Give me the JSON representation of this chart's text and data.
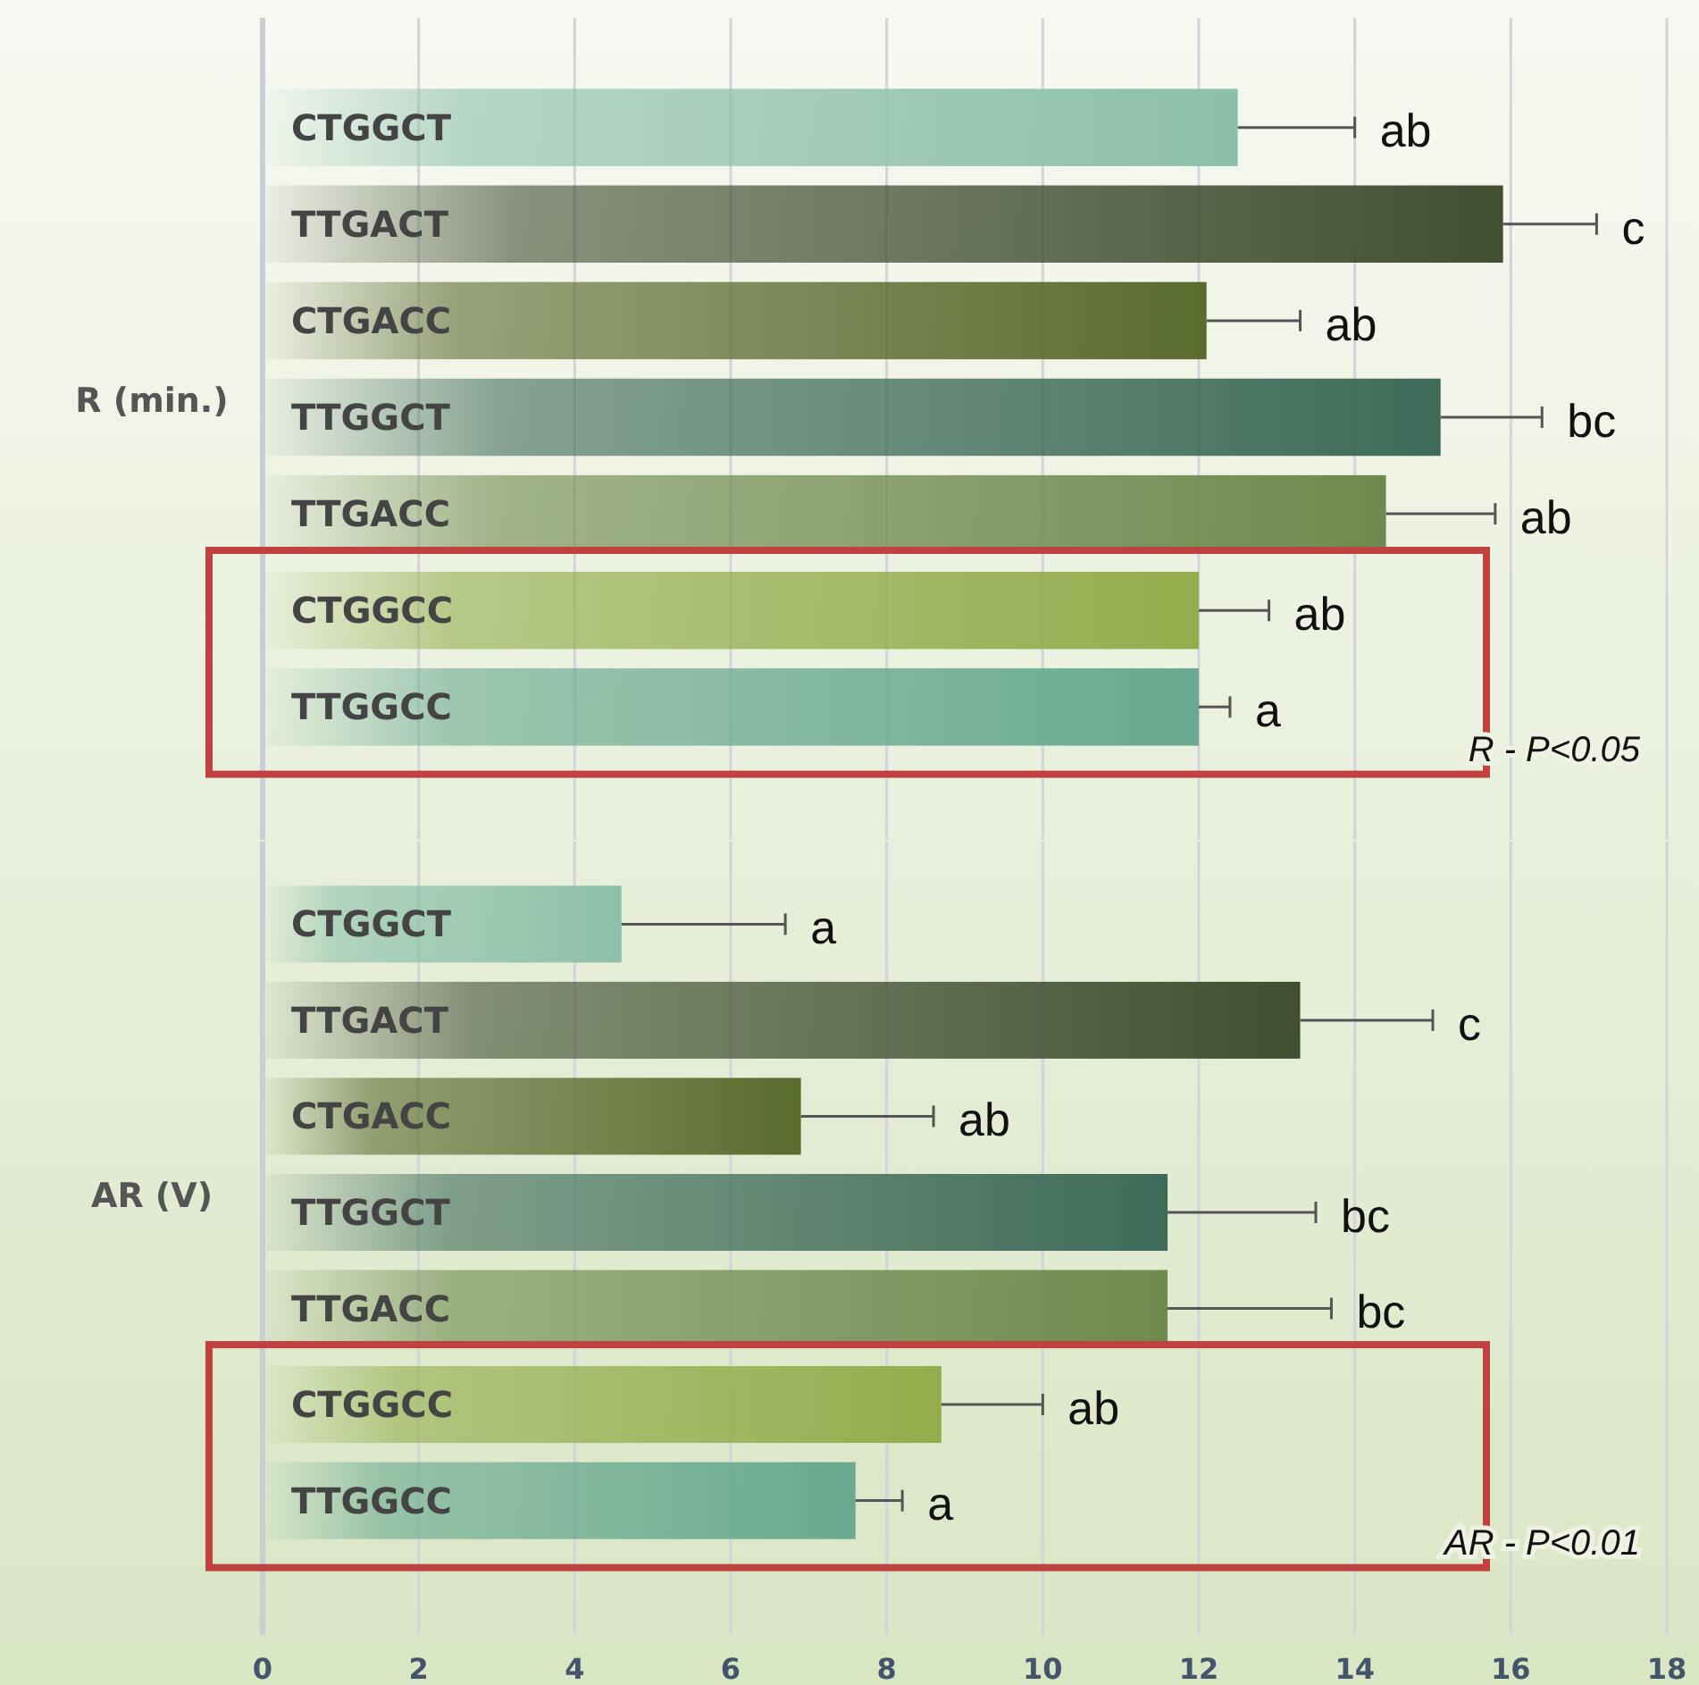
{
  "chart_data": [
    {
      "type": "bar",
      "orientation": "horizontal",
      "ylabel": "R (min.)",
      "categories": [
        "CTGGCT",
        "TTGACT",
        "CTGACC",
        "TTGGCT",
        "TTGACC",
        "CTGGCC",
        "TTGGCC"
      ],
      "values": [
        12.5,
        15.9,
        12.1,
        15.1,
        14.4,
        12.0,
        12.0
      ],
      "colors": [
        "#8cc0a9",
        "#414f31",
        "#5a6b2e",
        "#3e6b59",
        "#6e8a4e",
        "#93ad4c",
        "#68a990"
      ],
      "errors": [
        [
          12.5,
          14.0
        ],
        [
          15.9,
          17.1
        ],
        [
          12.1,
          13.3
        ],
        [
          15.1,
          16.4
        ],
        [
          14.4,
          15.8
        ],
        [
          12.0,
          12.9
        ],
        [
          12.0,
          12.4
        ]
      ],
      "xlim": [
        0,
        18
      ],
      "xticks": [
        0,
        2,
        4,
        6,
        8,
        10,
        12,
        14,
        16,
        18
      ],
      "grid": "x",
      "tick_labels": "y",
      "annotations": [
        {
          "text": "ab",
          "x": 14.0,
          "y": "CTGGCT"
        },
        {
          "text": "c",
          "x": 17.1,
          "y": "TTGACT"
        },
        {
          "text": "ab",
          "x": 13.3,
          "y": "CTGACC"
        },
        {
          "text": "bc",
          "x": 16.4,
          "y": "TTGGCT"
        },
        {
          "text": "ab",
          "x": 15.8,
          "y": "TTGACC"
        },
        {
          "text": "ab",
          "x": 12.9,
          "y": "CTGGCC"
        },
        {
          "text": "a",
          "x": 12.4,
          "y": "TTGGCC"
        },
        "R - P<0.05"
      ]
    },
    {
      "type": "bar",
      "orientation": "horizontal",
      "ylabel": "AR (V)",
      "categories": [
        "CTGGCT",
        "TTGACT",
        "CTGACC",
        "TTGGCT",
        "TTGACC",
        "CTGGCC",
        "TTGGCC"
      ],
      "values": [
        4.6,
        13.3,
        6.9,
        11.6,
        11.6,
        8.7,
        7.6
      ],
      "colors": [
        "#8cc0a9",
        "#414f31",
        "#5a6b2e",
        "#3e6b59",
        "#6e8a4e",
        "#93ad4c",
        "#68a990"
      ],
      "errors": [
        [
          4.6,
          6.7
        ],
        [
          13.3,
          15.0
        ],
        [
          6.9,
          8.6
        ],
        [
          11.6,
          13.5
        ],
        [
          11.6,
          13.7
        ],
        [
          8.7,
          10.0
        ],
        [
          7.6,
          8.2
        ]
      ],
      "xlim": [
        0,
        18
      ],
      "xticks": [
        0,
        2,
        4,
        6,
        8,
        10,
        12,
        14,
        16,
        18
      ],
      "grid": "x",
      "annotations": [
        {
          "text": "a",
          "x": 6.7,
          "y": "CTGGCT"
        },
        {
          "text": "c",
          "x": 15.0,
          "y": "TTGACT"
        },
        {
          "text": "ab",
          "x": 8.6,
          "y": "CTGACC"
        },
        {
          "text": "bc",
          "x": 13.5,
          "y": "TTGGCT"
        },
        {
          "text": "bc",
          "x": 13.7,
          "y": "TTGACC"
        },
        {
          "text": "ab",
          "x": 10.0,
          "y": "CTGGCC"
        },
        {
          "text": "a",
          "x": 8.2,
          "y": "TTGGCC"
        },
        "AR - P<0.01"
      ]
    }
  ]
}
